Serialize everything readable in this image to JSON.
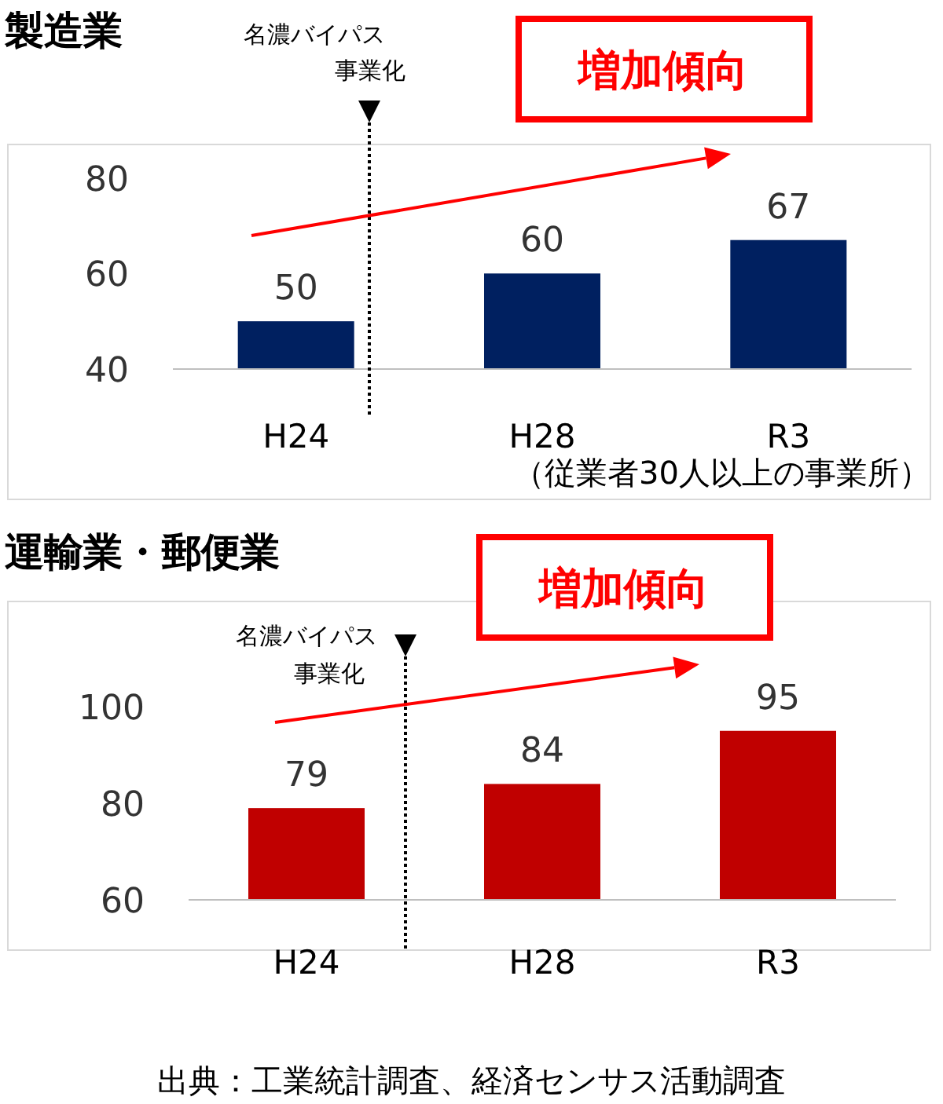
{
  "chart_data": [
    {
      "type": "bar",
      "title": "製造業",
      "categories": [
        "H24",
        "H28",
        "R3"
      ],
      "values": [
        50,
        60,
        67
      ],
      "color": "#002060",
      "ylim": [
        40,
        87
      ],
      "yticks": [
        40,
        60,
        80
      ],
      "data_labels": true,
      "annotations": [
        "増加傾向",
        "名濃バイパス",
        "事業化",
        "（従業者30人以上の事業所）"
      ]
    },
    {
      "type": "bar",
      "title": "運輸業・郵便業",
      "categories": [
        "H24",
        "H28",
        "R3"
      ],
      "values": [
        79,
        84,
        95
      ],
      "color": "#c00000",
      "ylim": [
        60,
        100
      ],
      "yticks": [
        60,
        80,
        100
      ],
      "data_labels": true,
      "annotations": [
        "増加傾向",
        "名濃バイパス",
        "事業化",
        "出典：工業統計調査、経済センサス活動調査"
      ]
    }
  ]
}
